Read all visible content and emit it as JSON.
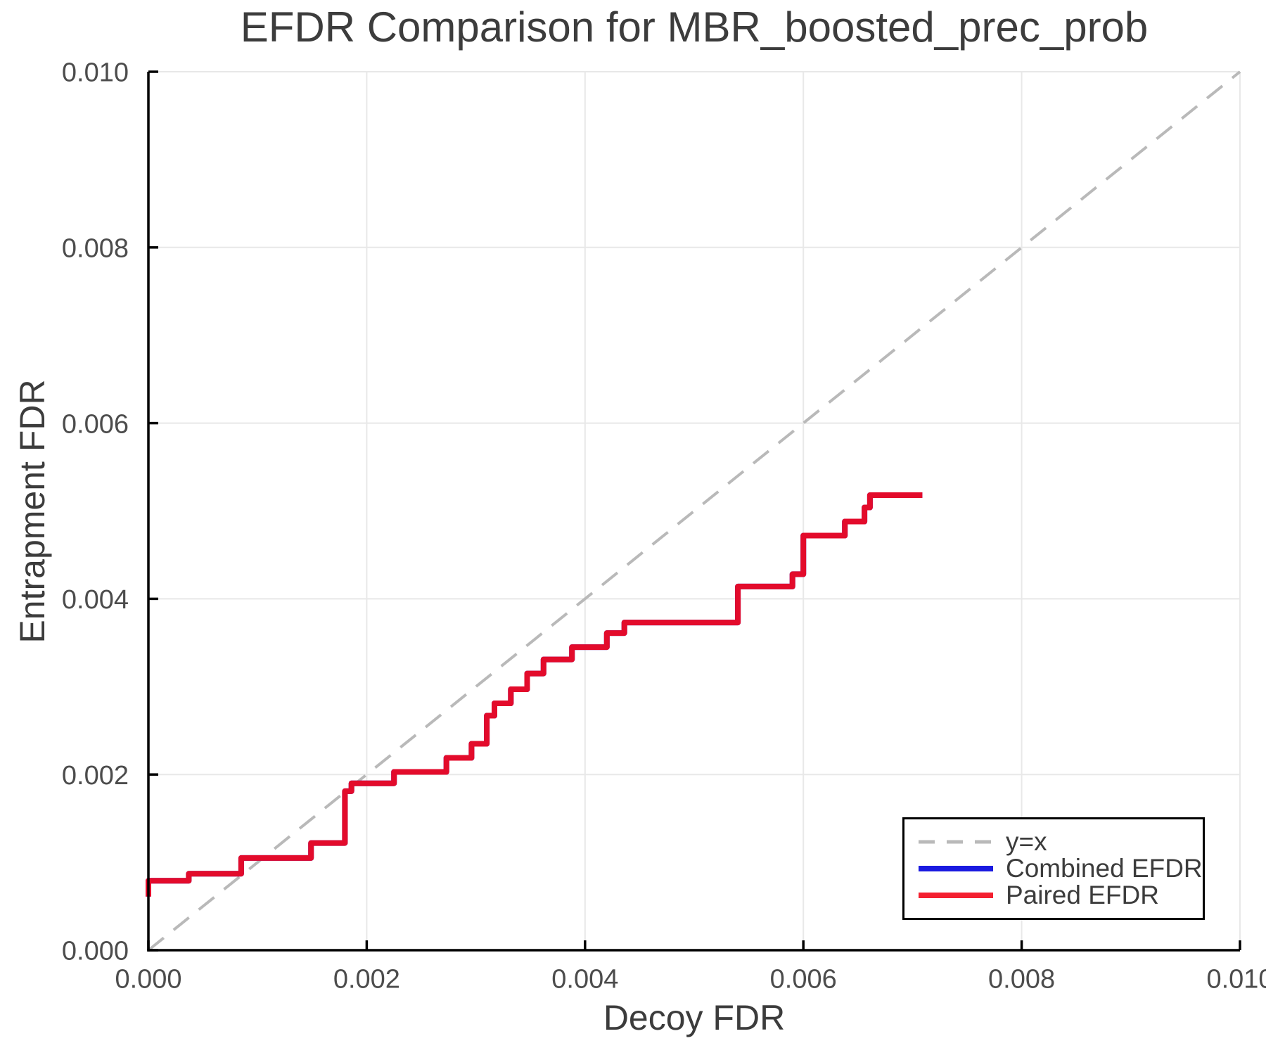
{
  "chart_data": {
    "type": "line",
    "title": "EFDR Comparison for MBR_boosted_prec_prob",
    "xlabel": "Decoy FDR",
    "ylabel": "Entrapment FDR",
    "xlim": [
      0.0,
      0.01
    ],
    "ylim": [
      0.0,
      0.01
    ],
    "x_tick_values": [
      0.0,
      0.002,
      0.004,
      0.006,
      0.008,
      0.01
    ],
    "x_tick_labels": [
      "0.000",
      "0.002",
      "0.004",
      "0.006",
      "0.008",
      "0.010"
    ],
    "y_tick_values": [
      0.0,
      0.002,
      0.004,
      0.006,
      0.008,
      0.01
    ],
    "y_tick_labels": [
      "0.000",
      "0.002",
      "0.004",
      "0.006",
      "0.008",
      "0.010"
    ],
    "grid": true,
    "legend": {
      "position": "lower-right",
      "entries": [
        {
          "label": "y=x",
          "color": "#b9b9b9",
          "dash": true
        },
        {
          "label": "Combined EFDR",
          "color": "#1a1ae0",
          "dash": false
        },
        {
          "label": "Paired EFDR",
          "color": "#f42030",
          "dash": false
        }
      ]
    },
    "series": [
      {
        "name": "y=x",
        "color": "#b9b9b9",
        "dash": true,
        "width": 4,
        "points_key": "diagonal_points"
      },
      {
        "name": "Combined EFDR",
        "color": "#1a1ae0",
        "dash": false,
        "width": 8,
        "points_key": "efdr_step_points"
      },
      {
        "name": "Paired EFDR",
        "color": "#e30b2b",
        "dash": false,
        "width": 8,
        "points_key": "efdr_step_points"
      }
    ],
    "diagonal_points": [
      [
        0.0,
        0.0
      ],
      [
        0.01,
        0.01
      ]
    ],
    "efdr_step_points": [
      [
        0.0,
        0.00061
      ],
      [
        0.0,
        0.00079
      ],
      [
        0.00037,
        0.00079
      ],
      [
        0.00037,
        0.00087
      ],
      [
        0.00085,
        0.00087
      ],
      [
        0.00085,
        0.00105
      ],
      [
        0.00149,
        0.00105
      ],
      [
        0.00149,
        0.00122
      ],
      [
        0.0018,
        0.00122
      ],
      [
        0.0018,
        0.00181
      ],
      [
        0.00186,
        0.00181
      ],
      [
        0.00186,
        0.0019
      ],
      [
        0.00225,
        0.0019
      ],
      [
        0.00225,
        0.00203
      ],
      [
        0.00273,
        0.00203
      ],
      [
        0.00273,
        0.00219
      ],
      [
        0.00296,
        0.00219
      ],
      [
        0.00296,
        0.00235
      ],
      [
        0.0031,
        0.00235
      ],
      [
        0.0031,
        0.00267
      ],
      [
        0.00317,
        0.00267
      ],
      [
        0.00317,
        0.00281
      ],
      [
        0.00332,
        0.00281
      ],
      [
        0.00332,
        0.00297
      ],
      [
        0.00347,
        0.00297
      ],
      [
        0.00347,
        0.00315
      ],
      [
        0.00362,
        0.00315
      ],
      [
        0.00362,
        0.00331
      ],
      [
        0.00388,
        0.00331
      ],
      [
        0.00388,
        0.00345
      ],
      [
        0.0042,
        0.00345
      ],
      [
        0.0042,
        0.00361
      ],
      [
        0.00436,
        0.00361
      ],
      [
        0.00436,
        0.00373
      ],
      [
        0.0054,
        0.00373
      ],
      [
        0.0054,
        0.00414
      ],
      [
        0.0059,
        0.00414
      ],
      [
        0.0059,
        0.00428
      ],
      [
        0.006,
        0.00428
      ],
      [
        0.006,
        0.00472
      ],
      [
        0.00638,
        0.00472
      ],
      [
        0.00638,
        0.00488
      ],
      [
        0.00656,
        0.00488
      ],
      [
        0.00656,
        0.00504
      ],
      [
        0.00661,
        0.00504
      ],
      [
        0.00661,
        0.00518
      ],
      [
        0.00709,
        0.00518
      ]
    ]
  },
  "colors": {
    "axis": "#000000",
    "grid": "#e8e8e8",
    "tick_label": "#4c4c4c",
    "title": "#3c3c3c",
    "legend_border": "#000000",
    "legend_bg": "#ffffff"
  }
}
